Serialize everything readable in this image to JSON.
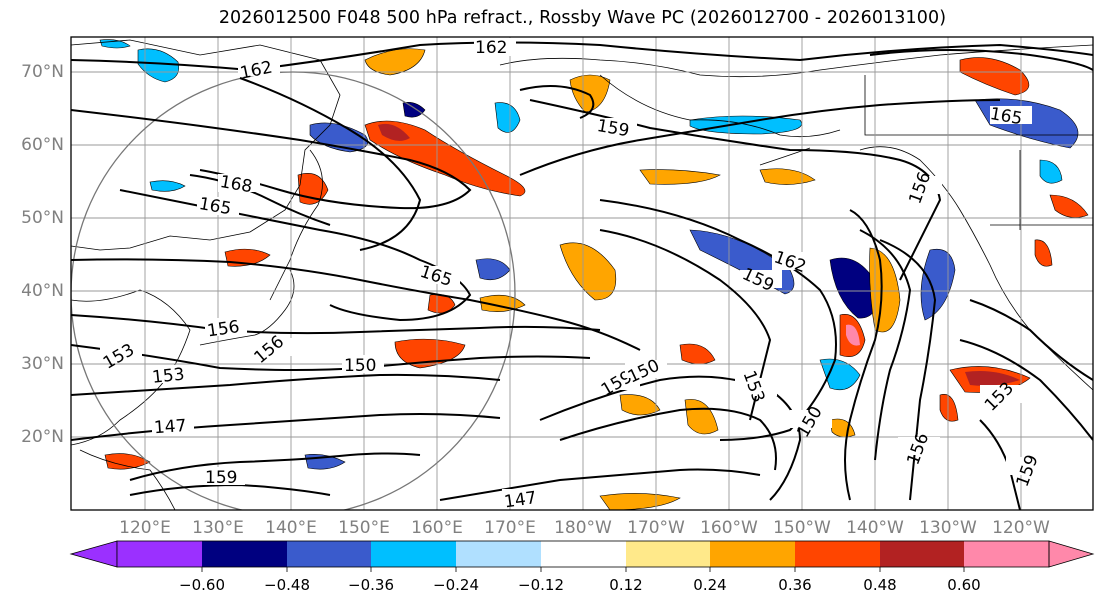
{
  "title": "2026012500 F048 500 hPa refract., Rossby Wave PC (2026012700 - 2026013100)",
  "lat_labels": [
    "70°N",
    "60°N",
    "50°N",
    "40°N",
    "30°N",
    "20°N"
  ],
  "lon_labels": [
    "120°E",
    "130°E",
    "140°E",
    "150°E",
    "160°E",
    "170°E",
    "180°W",
    "170°W",
    "160°W",
    "150°W",
    "140°W",
    "130°W",
    "120°W"
  ],
  "contour_labels": [
    "162",
    "162",
    "159",
    "165",
    "168",
    "165",
    "165",
    "162",
    "159",
    "156",
    "153",
    "156",
    "153",
    "150",
    "147",
    "159",
    "150",
    "156",
    "147",
    "159",
    "153",
    "150",
    "156",
    "153",
    "159"
  ],
  "colorbar": {
    "ticks": [
      "−0.60",
      "−0.48",
      "−0.36",
      "−0.24",
      "−0.12",
      "0.12",
      "0.24",
      "0.36",
      "0.48",
      "0.60"
    ],
    "colors": [
      "#9b30ff",
      "#000080",
      "#3a5bcc",
      "#00bfff",
      "#b0e0ff",
      "#ffffff",
      "#ffe98a",
      "#ffa500",
      "#ff4500",
      "#b22222",
      "#ff88aa"
    ]
  }
}
